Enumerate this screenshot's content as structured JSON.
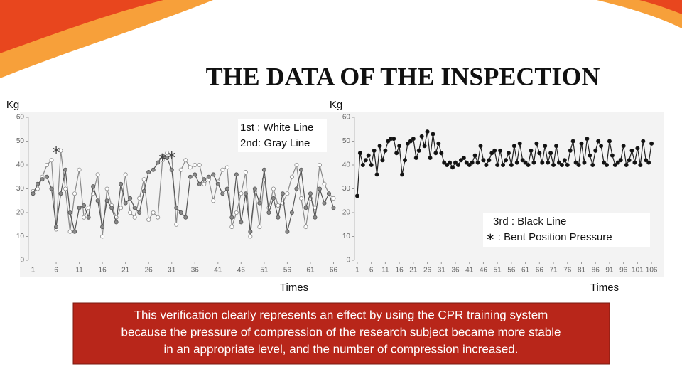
{
  "title": "THE DATA OF  THE INSPECTION",
  "caption": [
    "This verification clearly represents an effect by using the CPR training system",
    "because the pressure of compression of the research subject became more stable",
    "in an appropriate level, and the number of compression increased."
  ],
  "chart_data": [
    {
      "type": "line",
      "y_label": "Kg",
      "x_label": "Times",
      "xlim": [
        0,
        67
      ],
      "ylim": [
        0,
        60
      ],
      "xticks": [
        1,
        6,
        11,
        16,
        21,
        26,
        31,
        36,
        41,
        46,
        51,
        56,
        61,
        66
      ],
      "yticks": [
        0,
        10,
        20,
        30,
        40,
        50,
        60
      ],
      "x": [
        1,
        2,
        3,
        4,
        5,
        6,
        7,
        8,
        9,
        10,
        11,
        12,
        13,
        14,
        15,
        16,
        17,
        18,
        19,
        20,
        21,
        22,
        23,
        24,
        25,
        26,
        27,
        28,
        29,
        30,
        31,
        32,
        33,
        34,
        35,
        36,
        37,
        38,
        39,
        40,
        41,
        42,
        43,
        44,
        45,
        46,
        47,
        48,
        49,
        50,
        51,
        52,
        53,
        54,
        55,
        56,
        57,
        58,
        59,
        60,
        61,
        62,
        63,
        64,
        65,
        66
      ],
      "series": [
        {
          "name": "1st : White Line",
          "color": "#8a8a8a",
          "marker_color": "#ffffff",
          "values": [
            29,
            30,
            35,
            40,
            42,
            13,
            46,
            30,
            12,
            28,
            38,
            18,
            22,
            28,
            36,
            10,
            30,
            23,
            18,
            22,
            36,
            20,
            18,
            26,
            34,
            17,
            20,
            18,
            42,
            45,
            44,
            15,
            38,
            42,
            39,
            40,
            40,
            32,
            34,
            25,
            33,
            38,
            39,
            14,
            20,
            28,
            37,
            10,
            29,
            14,
            34,
            22,
            30,
            23,
            24,
            28,
            35,
            40,
            26,
            14,
            26,
            22,
            40,
            32,
            28,
            26
          ]
        },
        {
          "name": "2nd: Gray Line",
          "color": "#555555",
          "marker_color": "#8a8a8a",
          "values": [
            28,
            32,
            34,
            35,
            30,
            14,
            28,
            38,
            20,
            12,
            22,
            23,
            18,
            31,
            25,
            14,
            25,
            22,
            16,
            32,
            24,
            26,
            22,
            20,
            29,
            37,
            38,
            41,
            44,
            43,
            38,
            22,
            20,
            18,
            35,
            36,
            32,
            34,
            35,
            36,
            32,
            28,
            30,
            18,
            36,
            16,
            28,
            12,
            30,
            24,
            38,
            20,
            26,
            18,
            28,
            12,
            20,
            30,
            38,
            22,
            28,
            18,
            30,
            24,
            28,
            22
          ]
        }
      ],
      "annotations": [
        {
          "text": "∗",
          "x": 6,
          "y": 46
        },
        {
          "text": "∗",
          "x": 29,
          "y": 43
        },
        {
          "text": "∗",
          "x": 31,
          "y": 44
        }
      ]
    },
    {
      "type": "line",
      "y_label": "Kg",
      "x_label": "Times",
      "xlim": [
        0,
        108
      ],
      "ylim": [
        0,
        60
      ],
      "xticks": [
        1,
        6,
        11,
        16,
        21,
        26,
        31,
        36,
        41,
        46,
        51,
        56,
        61,
        66,
        71,
        76,
        81,
        86,
        91,
        96,
        101,
        106
      ],
      "yticks": [
        0,
        10,
        20,
        30,
        40,
        50,
        60
      ],
      "x": [
        1,
        2,
        3,
        4,
        5,
        6,
        7,
        8,
        9,
        10,
        11,
        12,
        13,
        14,
        15,
        16,
        17,
        18,
        19,
        20,
        21,
        22,
        23,
        24,
        25,
        26,
        27,
        28,
        29,
        30,
        31,
        32,
        33,
        34,
        35,
        36,
        37,
        38,
        39,
        40,
        41,
        42,
        43,
        44,
        45,
        46,
        47,
        48,
        49,
        50,
        51,
        52,
        53,
        54,
        55,
        56,
        57,
        58,
        59,
        60,
        61,
        62,
        63,
        64,
        65,
        66,
        67,
        68,
        69,
        70,
        71,
        72,
        73,
        74,
        75,
        76,
        77,
        78,
        79,
        80,
        81,
        82,
        83,
        84,
        85,
        86,
        87,
        88,
        89,
        90,
        91,
        92,
        93,
        94,
        95,
        96,
        97,
        98,
        99,
        100,
        101,
        102,
        103,
        104,
        105,
        106
      ],
      "series": [
        {
          "name": "3rd : Black Line",
          "color": "#222222",
          "marker_color": "#111111",
          "values": [
            27,
            45,
            40,
            42,
            44,
            40,
            46,
            36,
            48,
            42,
            46,
            50,
            51,
            51,
            45,
            48,
            36,
            42,
            49,
            50,
            51,
            43,
            46,
            52,
            48,
            54,
            43,
            53,
            45,
            49,
            45,
            41,
            40,
            41,
            39,
            41,
            40,
            42,
            43,
            41,
            40,
            41,
            44,
            41,
            48,
            42,
            40,
            42,
            45,
            46,
            40,
            46,
            40,
            42,
            45,
            40,
            48,
            41,
            49,
            42,
            41,
            40,
            46,
            41,
            49,
            45,
            41,
            48,
            41,
            45,
            40,
            48,
            41,
            40,
            42,
            40,
            46,
            50,
            41,
            40,
            49,
            41,
            51,
            44,
            40,
            46,
            50,
            48,
            41,
            40,
            50,
            44,
            40,
            41,
            42,
            48,
            40,
            42,
            46,
            41,
            47,
            40,
            50,
            42,
            41,
            49
          ]
        }
      ],
      "note": "∗ : Bent Position Pressure"
    }
  ]
}
